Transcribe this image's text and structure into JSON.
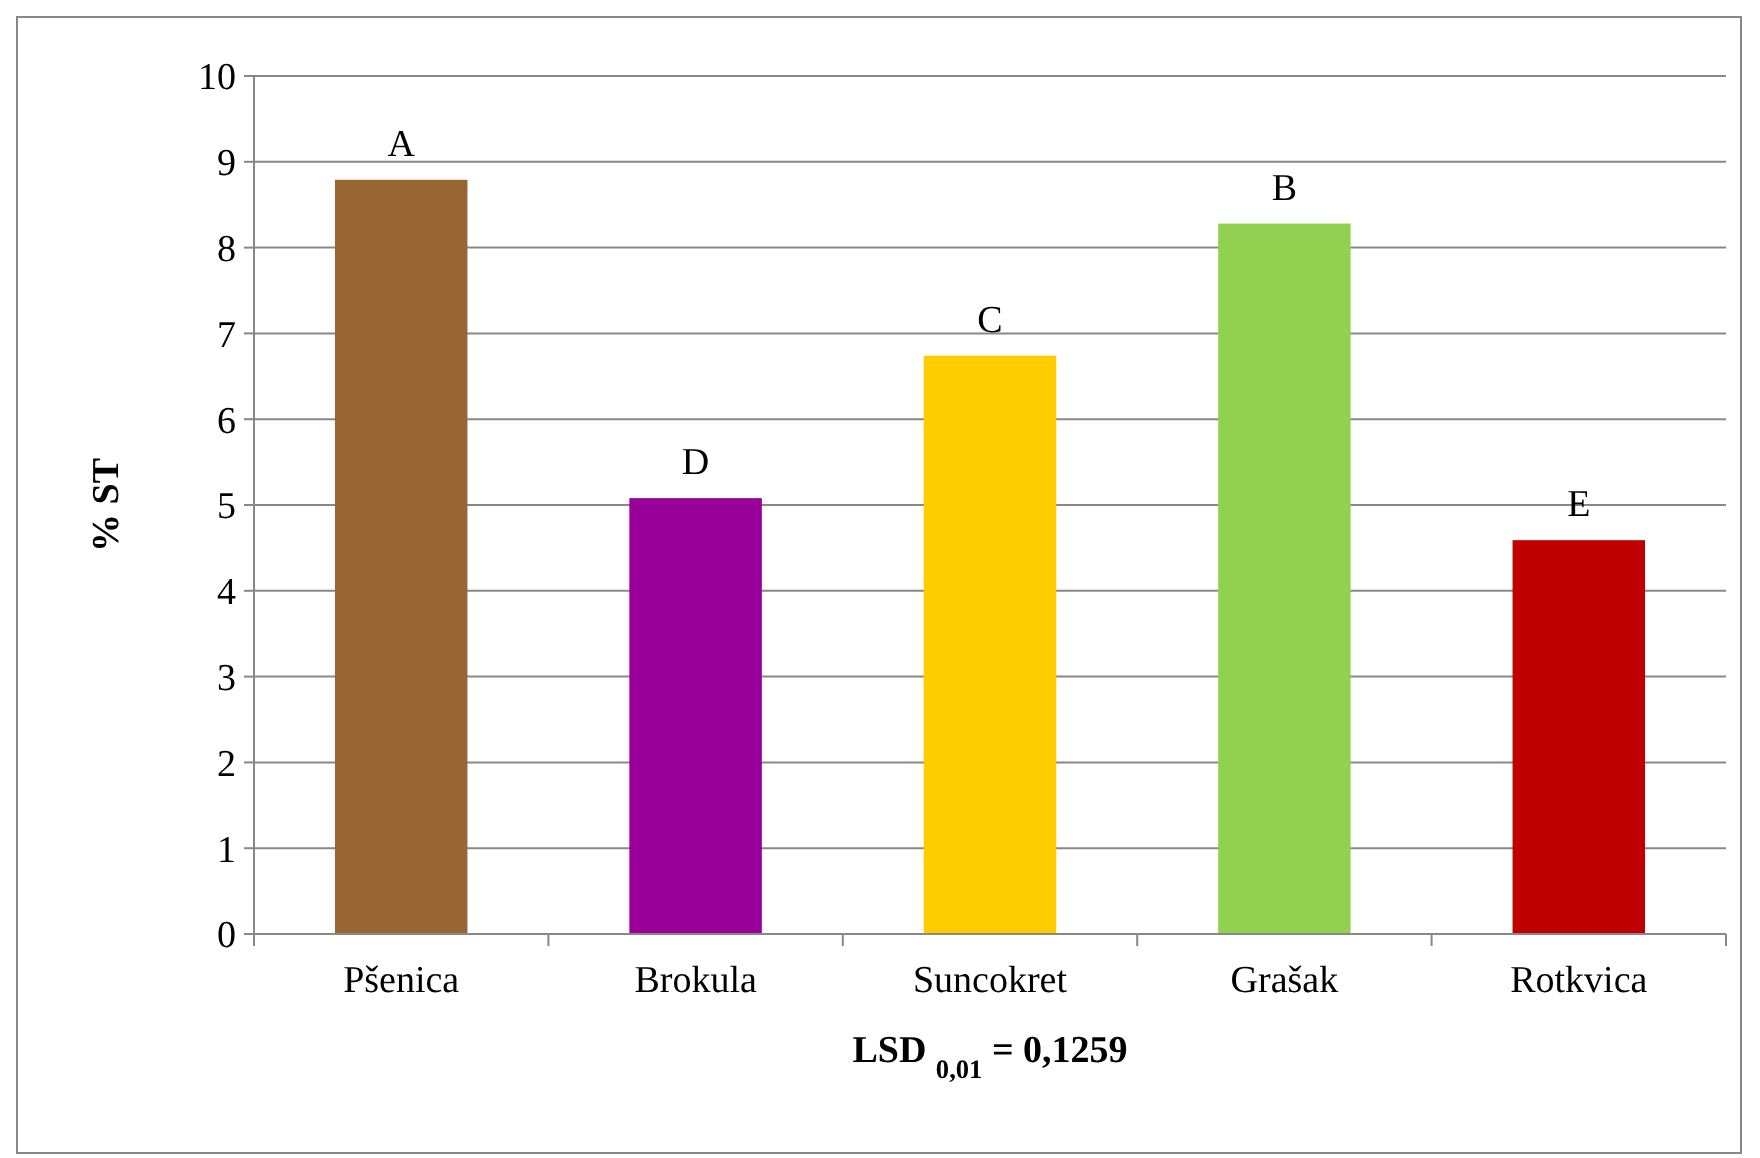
{
  "chart_data": {
    "type": "bar",
    "ylabel": "% ST",
    "xlabel": "LSD $_{0,01}$ = 0,1259",
    "categories": [
      "Pšenica",
      "Brokula",
      "Suncokret",
      "Grašak",
      "Rotkvica"
    ],
    "values": [
      8.79,
      5.08,
      6.74,
      8.28,
      4.59
    ],
    "colors": [
      "#996633",
      "#990099",
      "#ffcc00",
      "#92d050",
      "#c00000"
    ],
    "ylim": [
      0,
      10
    ],
    "yticks": [
      0,
      1,
      2,
      3,
      4,
      5,
      6,
      7,
      8,
      9,
      10
    ],
    "grid": "y",
    "annotations": [
      {
        "text": "A",
        "x": "Pšenica",
        "y": 8.79
      },
      {
        "text": "D",
        "x": "Brokula",
        "y": 5.08
      },
      {
        "text": "C",
        "x": "Suncokret",
        "y": 6.74
      },
      {
        "text": "B",
        "x": "Grašak",
        "y": 8.28
      },
      {
        "text": "E",
        "x": "Rotkvica",
        "y": 4.59
      }
    ]
  }
}
